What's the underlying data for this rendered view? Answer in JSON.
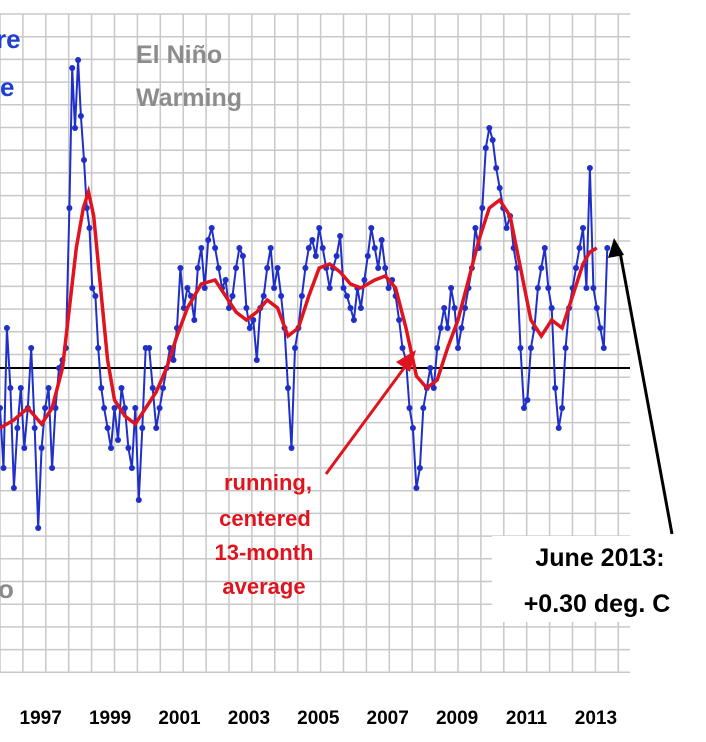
{
  "chart_data": {
    "type": "line",
    "x_axis": {
      "tick_labels": [
        "1997",
        "1999",
        "2001",
        "2003",
        "2005",
        "2007",
        "2009",
        "2011",
        "2013"
      ]
    },
    "zero_line": true,
    "grid": true,
    "series": [
      {
        "role": "monthly",
        "color": "#1f2fc8",
        "points": [
          [
            1996.0,
            -0.1
          ],
          [
            1996.1,
            -0.25
          ],
          [
            1996.2,
            0.1
          ],
          [
            1996.3,
            -0.05
          ],
          [
            1996.4,
            -0.3
          ],
          [
            1996.5,
            -0.15
          ],
          [
            1996.6,
            -0.05
          ],
          [
            1996.7,
            -0.2
          ],
          [
            1996.8,
            -0.1
          ],
          [
            1996.9,
            0.05
          ],
          [
            1997.0,
            -0.15
          ],
          [
            1997.1,
            -0.4
          ],
          [
            1997.2,
            -0.2
          ],
          [
            1997.3,
            -0.1
          ],
          [
            1997.4,
            -0.05
          ],
          [
            1997.5,
            -0.25
          ],
          [
            1997.6,
            -0.1
          ],
          [
            1997.7,
            0.0
          ],
          [
            1997.8,
            0.02
          ],
          [
            1997.9,
            0.05
          ],
          [
            1998.0,
            0.4
          ],
          [
            1998.08,
            0.75
          ],
          [
            1998.16,
            0.6
          ],
          [
            1998.25,
            0.77
          ],
          [
            1998.33,
            0.63
          ],
          [
            1998.42,
            0.52
          ],
          [
            1998.5,
            0.4
          ],
          [
            1998.58,
            0.35
          ],
          [
            1998.66,
            0.2
          ],
          [
            1998.75,
            0.18
          ],
          [
            1998.83,
            0.05
          ],
          [
            1998.92,
            -0.05
          ],
          [
            1999.0,
            -0.1
          ],
          [
            1999.1,
            -0.15
          ],
          [
            1999.2,
            -0.2
          ],
          [
            1999.3,
            -0.1
          ],
          [
            1999.4,
            -0.18
          ],
          [
            1999.5,
            -0.05
          ],
          [
            1999.6,
            -0.1
          ],
          [
            1999.7,
            -0.2
          ],
          [
            1999.8,
            -0.25
          ],
          [
            1999.9,
            -0.1
          ],
          [
            2000.0,
            -0.33
          ],
          [
            2000.1,
            -0.15
          ],
          [
            2000.2,
            0.05
          ],
          [
            2000.3,
            0.05
          ],
          [
            2000.4,
            -0.05
          ],
          [
            2000.5,
            -0.15
          ],
          [
            2000.6,
            -0.1
          ],
          [
            2000.7,
            -0.05
          ],
          [
            2000.8,
            0.0
          ],
          [
            2000.9,
            0.05
          ],
          [
            2001.0,
            0.02
          ],
          [
            2001.1,
            0.1
          ],
          [
            2001.2,
            0.25
          ],
          [
            2001.3,
            0.15
          ],
          [
            2001.4,
            0.2
          ],
          [
            2001.5,
            0.18
          ],
          [
            2001.6,
            0.12
          ],
          [
            2001.7,
            0.25
          ],
          [
            2001.8,
            0.3
          ],
          [
            2001.9,
            0.2
          ],
          [
            2002.0,
            0.32
          ],
          [
            2002.1,
            0.35
          ],
          [
            2002.2,
            0.3
          ],
          [
            2002.3,
            0.25
          ],
          [
            2002.4,
            0.2
          ],
          [
            2002.5,
            0.22
          ],
          [
            2002.6,
            0.15
          ],
          [
            2002.7,
            0.18
          ],
          [
            2002.8,
            0.25
          ],
          [
            2002.9,
            0.3
          ],
          [
            2003.0,
            0.28
          ],
          [
            2003.1,
            0.15
          ],
          [
            2003.2,
            0.1
          ],
          [
            2003.3,
            0.12
          ],
          [
            2003.4,
            0.02
          ],
          [
            2003.5,
            0.15
          ],
          [
            2003.6,
            0.18
          ],
          [
            2003.7,
            0.25
          ],
          [
            2003.8,
            0.3
          ],
          [
            2003.9,
            0.2
          ],
          [
            2004.0,
            0.25
          ],
          [
            2004.1,
            0.18
          ],
          [
            2004.2,
            0.1
          ],
          [
            2004.3,
            -0.05
          ],
          [
            2004.4,
            -0.2
          ],
          [
            2004.5,
            0.05
          ],
          [
            2004.6,
            0.1
          ],
          [
            2004.7,
            0.18
          ],
          [
            2004.8,
            0.25
          ],
          [
            2004.9,
            0.3
          ],
          [
            2005.0,
            0.32
          ],
          [
            2005.1,
            0.28
          ],
          [
            2005.2,
            0.35
          ],
          [
            2005.3,
            0.3
          ],
          [
            2005.4,
            0.25
          ],
          [
            2005.5,
            0.2
          ],
          [
            2005.6,
            0.25
          ],
          [
            2005.7,
            0.28
          ],
          [
            2005.8,
            0.33
          ],
          [
            2005.9,
            0.2
          ],
          [
            2006.0,
            0.18
          ],
          [
            2006.1,
            0.15
          ],
          [
            2006.2,
            0.12
          ],
          [
            2006.3,
            0.2
          ],
          [
            2006.4,
            0.15
          ],
          [
            2006.5,
            0.22
          ],
          [
            2006.6,
            0.28
          ],
          [
            2006.7,
            0.35
          ],
          [
            2006.8,
            0.3
          ],
          [
            2006.9,
            0.25
          ],
          [
            2007.0,
            0.32
          ],
          [
            2007.1,
            0.25
          ],
          [
            2007.2,
            0.2
          ],
          [
            2007.3,
            0.22
          ],
          [
            2007.4,
            0.18
          ],
          [
            2007.5,
            0.12
          ],
          [
            2007.6,
            0.05
          ],
          [
            2007.7,
            0.02
          ],
          [
            2007.8,
            -0.1
          ],
          [
            2007.9,
            -0.15
          ],
          [
            2008.0,
            -0.3
          ],
          [
            2008.1,
            -0.25
          ],
          [
            2008.2,
            -0.1
          ],
          [
            2008.3,
            -0.05
          ],
          [
            2008.4,
            0.0
          ],
          [
            2008.5,
            -0.05
          ],
          [
            2008.6,
            0.05
          ],
          [
            2008.7,
            0.1
          ],
          [
            2008.8,
            0.15
          ],
          [
            2008.9,
            0.1
          ],
          [
            2009.0,
            0.2
          ],
          [
            2009.1,
            0.15
          ],
          [
            2009.2,
            0.05
          ],
          [
            2009.3,
            0.1
          ],
          [
            2009.4,
            0.15
          ],
          [
            2009.5,
            0.2
          ],
          [
            2009.6,
            0.25
          ],
          [
            2009.7,
            0.35
          ],
          [
            2009.8,
            0.3
          ],
          [
            2009.9,
            0.4
          ],
          [
            2010.0,
            0.55
          ],
          [
            2010.1,
            0.6
          ],
          [
            2010.2,
            0.57
          ],
          [
            2010.3,
            0.5
          ],
          [
            2010.4,
            0.45
          ],
          [
            2010.5,
            0.4
          ],
          [
            2010.6,
            0.35
          ],
          [
            2010.7,
            0.38
          ],
          [
            2010.8,
            0.3
          ],
          [
            2010.9,
            0.25
          ],
          [
            2011.0,
            0.05
          ],
          [
            2011.1,
            -0.1
          ],
          [
            2011.2,
            -0.08
          ],
          [
            2011.3,
            0.05
          ],
          [
            2011.4,
            0.1
          ],
          [
            2011.5,
            0.2
          ],
          [
            2011.6,
            0.25
          ],
          [
            2011.7,
            0.3
          ],
          [
            2011.8,
            0.2
          ],
          [
            2011.9,
            0.15
          ],
          [
            2012.0,
            -0.05
          ],
          [
            2012.1,
            -0.15
          ],
          [
            2012.2,
            -0.1
          ],
          [
            2012.3,
            0.05
          ],
          [
            2012.4,
            0.15
          ],
          [
            2012.5,
            0.2
          ],
          [
            2012.6,
            0.25
          ],
          [
            2012.7,
            0.3
          ],
          [
            2012.8,
            0.35
          ],
          [
            2012.9,
            0.2
          ],
          [
            2013.0,
            0.5
          ],
          [
            2013.1,
            0.2
          ],
          [
            2013.2,
            0.15
          ],
          [
            2013.3,
            0.1
          ],
          [
            2013.4,
            0.05
          ],
          [
            2013.5,
            0.3
          ]
        ]
      },
      {
        "role": "running mean",
        "color": "#e0141e",
        "points": [
          [
            1996.0,
            -0.15
          ],
          [
            1996.4,
            -0.13
          ],
          [
            1996.8,
            -0.1
          ],
          [
            1997.2,
            -0.14
          ],
          [
            1997.5,
            -0.1
          ],
          [
            1997.8,
            0.0
          ],
          [
            1998.0,
            0.15
          ],
          [
            1998.2,
            0.3
          ],
          [
            1998.4,
            0.4
          ],
          [
            1998.55,
            0.44
          ],
          [
            1998.7,
            0.38
          ],
          [
            1998.9,
            0.2
          ],
          [
            1999.1,
            0.02
          ],
          [
            1999.3,
            -0.08
          ],
          [
            1999.6,
            -0.12
          ],
          [
            1999.9,
            -0.14
          ],
          [
            2000.2,
            -0.1
          ],
          [
            2000.5,
            -0.06
          ],
          [
            2000.8,
            0.0
          ],
          [
            2001.1,
            0.08
          ],
          [
            2001.4,
            0.15
          ],
          [
            2001.8,
            0.21
          ],
          [
            2002.2,
            0.22
          ],
          [
            2002.5,
            0.18
          ],
          [
            2002.8,
            0.14
          ],
          [
            2003.1,
            0.12
          ],
          [
            2003.4,
            0.14
          ],
          [
            2003.7,
            0.17
          ],
          [
            2004.0,
            0.15
          ],
          [
            2004.3,
            0.08
          ],
          [
            2004.6,
            0.1
          ],
          [
            2004.9,
            0.18
          ],
          [
            2005.2,
            0.25
          ],
          [
            2005.5,
            0.26
          ],
          [
            2005.8,
            0.24
          ],
          [
            2006.1,
            0.21
          ],
          [
            2006.4,
            0.2
          ],
          [
            2006.8,
            0.22
          ],
          [
            2007.1,
            0.23
          ],
          [
            2007.4,
            0.2
          ],
          [
            2007.7,
            0.1
          ],
          [
            2008.0,
            -0.02
          ],
          [
            2008.3,
            -0.05
          ],
          [
            2008.6,
            -0.03
          ],
          [
            2008.9,
            0.05
          ],
          [
            2009.2,
            0.12
          ],
          [
            2009.5,
            0.22
          ],
          [
            2009.8,
            0.32
          ],
          [
            2010.1,
            0.4
          ],
          [
            2010.4,
            0.42
          ],
          [
            2010.7,
            0.38
          ],
          [
            2011.0,
            0.25
          ],
          [
            2011.3,
            0.12
          ],
          [
            2011.6,
            0.08
          ],
          [
            2011.9,
            0.12
          ],
          [
            2012.2,
            0.1
          ],
          [
            2012.5,
            0.18
          ],
          [
            2012.8,
            0.26
          ],
          [
            2013.0,
            0.29
          ],
          [
            2013.2,
            0.3
          ]
        ]
      }
    ],
    "labels": {
      "top_left_fragment_1": "re",
      "top_left_fragment_2": "e",
      "el_nino_line1": "El Niño",
      "el_nino_line2": "Warming",
      "running_mean_line1": "running,",
      "running_mean_line2": "centered",
      "running_mean_line3": "13-month",
      "running_mean_line4": "average",
      "latest_line1": "June 2013:",
      "latest_line2": "+0.30 deg. C",
      "left_fragment": "o"
    },
    "colors": {
      "monthly": "#1f2fc8",
      "running_mean": "#e0141e",
      "el_nino_text": "#8c8c8c",
      "grid": "#c8c8c8",
      "label_accent": "#1f3fd0"
    }
  }
}
